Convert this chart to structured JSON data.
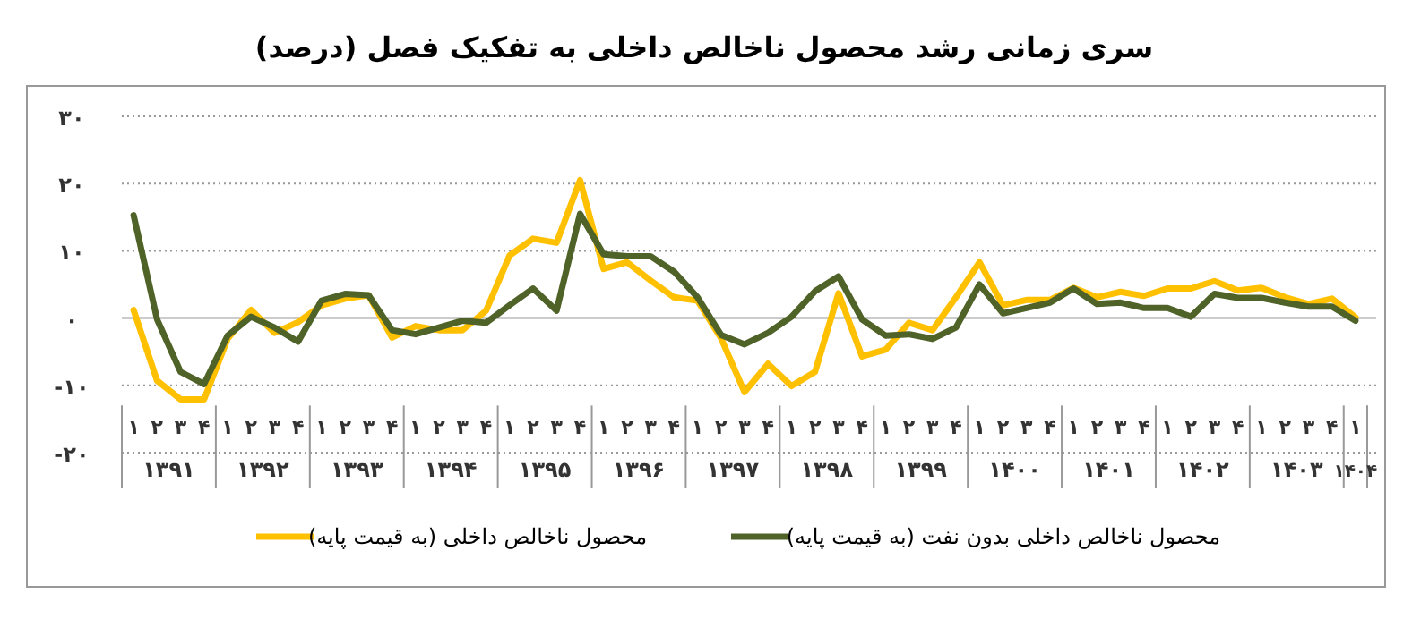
{
  "chart_data": {
    "type": "line",
    "title": "سری زمانی رشد محصول ناخالص داخلی به تفکیک فصل (درصد)",
    "categories": [
      "۱",
      "۲",
      "۳",
      "۴",
      "۱",
      "۲",
      "۳",
      "۴",
      "۱",
      "۲",
      "۳",
      "۴",
      "۱",
      "۲",
      "۳",
      "۴",
      "۱",
      "۲",
      "۳",
      "۴",
      "۱",
      "۲",
      "۳",
      "۴",
      "۱",
      "۲",
      "۳",
      "۴",
      "۱",
      "۲",
      "۳",
      "۴",
      "۱",
      "۲",
      "۳",
      "۴",
      "۱",
      "۲",
      "۳",
      "۴",
      "۱",
      "۲",
      "۳",
      "۴",
      "۱",
      "۲",
      "۳",
      "۴",
      "۱",
      "۲",
      "۳",
      "۴",
      "۱"
    ],
    "annotations": [
      "۱۳۹۱",
      "۱۳۹۲",
      "۱۳۹۳",
      "۱۳۹۴",
      "۱۳۹۵",
      "۱۳۹۶",
      "۱۳۹۷",
      "۱۳۹۸",
      "۱۳۹۹",
      "۱۴۰۰",
      "۱۴۰۱",
      "۱۴۰۲",
      "۱۴۰۳",
      "۱۴۰۴"
    ],
    "series": [
      {
        "name": "محصول ناخالص داخلی (به قیمت پایه)",
        "color": "#ffc000",
        "values": [
          1.2,
          -9.3,
          -12.1,
          -12.1,
          -3.1,
          1.2,
          -2.2,
          -0.6,
          1.9,
          2.9,
          3.4,
          -2.9,
          -1.2,
          -1.8,
          -1.8,
          1.1,
          9.3,
          11.8,
          11.2,
          20.5,
          7.3,
          8.3,
          5.6,
          3.1,
          2.6,
          -3,
          -11,
          -6.8,
          -10.1,
          -8,
          3.7,
          -5.7,
          -4.7,
          -0.7,
          -1.8,
          3.1,
          8.3,
          1.9,
          2.7,
          2.7,
          4.5,
          3.1,
          3.9,
          3.3,
          4.4,
          4.4,
          5.5,
          4.1,
          4.5,
          3.1,
          2.1,
          2.9,
          0.1
        ]
      },
      {
        "name": "محصول ناخالص داخلی بدون نفت (به قیمت پایه)",
        "color": "#4f6228",
        "values": [
          15.3,
          -0.2,
          -8,
          -9.8,
          -2.6,
          0.2,
          -1.4,
          -3.5,
          2.6,
          3.6,
          3.4,
          -1.8,
          -2.4,
          -1.4,
          -0.4,
          -0.7,
          1.9,
          4.4,
          1.1,
          15.5,
          9.5,
          9.2,
          9.2,
          6.9,
          3.1,
          -2.5,
          -3.9,
          -2.2,
          0.2,
          4,
          6.2,
          -0.2,
          -2.6,
          -2.4,
          -3.1,
          -1.4,
          5,
          0.7,
          1.5,
          2.3,
          4.4,
          2.1,
          2.3,
          1.5,
          1.5,
          0.2,
          3.6,
          3,
          3,
          2.3,
          1.7,
          1.7,
          -0.4
        ]
      }
    ],
    "ylim": [
      -20,
      30
    ],
    "yticks": [
      {
        "value": 30,
        "label": "۳۰"
      },
      {
        "value": 20,
        "label": "۲۰"
      },
      {
        "value": 10,
        "label": "۱۰"
      },
      {
        "value": 0,
        "label": "۰"
      },
      {
        "value": -10,
        "label": "-۱۰"
      },
      {
        "value": -20,
        "label": "-۲۰"
      }
    ],
    "grid": "y",
    "legend": "bottom",
    "marker": "none",
    "line_style": "solid"
  }
}
